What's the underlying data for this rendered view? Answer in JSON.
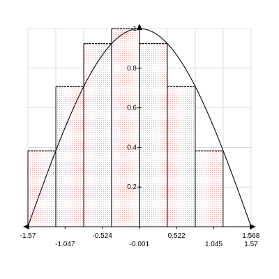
{
  "chart_data": {
    "type": "bar",
    "description_note": "",
    "title": "",
    "xlabel": "",
    "ylabel": "",
    "xlim": [
      -1.57,
      1.57
    ],
    "ylim": [
      0,
      1
    ],
    "grid": true,
    "rectangles": [
      {
        "x0": -1.57,
        "x1": -1.177,
        "height": 0.383
      },
      {
        "x0": -1.177,
        "x1": -0.785,
        "height": 0.707
      },
      {
        "x0": -0.785,
        "x1": -0.393,
        "height": 0.924
      },
      {
        "x0": -0.393,
        "x1": -0.001,
        "height": 1.0
      },
      {
        "x0": -0.001,
        "x1": 0.392,
        "height": 0.924
      },
      {
        "x0": 0.392,
        "x1": 0.784,
        "height": 0.707
      },
      {
        "x0": 0.784,
        "x1": 1.176,
        "height": 0.383
      }
    ],
    "curve": {
      "function": "cos(x)",
      "x_range": [
        -1.57,
        1.57
      ]
    },
    "x_tick_labels_upper": [
      {
        "x": -1.57,
        "label": "-1.57"
      },
      {
        "x": -0.524,
        "label": "-0.524"
      },
      {
        "x": 0.522,
        "label": "0.522"
      },
      {
        "x": 1.568,
        "label": "1.568"
      }
    ],
    "x_tick_labels_lower": [
      {
        "x": -1.047,
        "label": "-1.047"
      },
      {
        "x": -0.001,
        "label": "-0.001"
      },
      {
        "x": 1.045,
        "label": "1.045"
      },
      {
        "x": 1.57,
        "label": "1.57"
      }
    ],
    "y_ticks": [
      {
        "y": 0.2,
        "label": "0.2"
      },
      {
        "y": 0.4,
        "label": "0.4"
      },
      {
        "y": 0.6,
        "label": "0.6"
      },
      {
        "y": 0.8,
        "label": "0.8"
      },
      {
        "y": 1.0,
        "label": "1"
      }
    ],
    "colors": {
      "fill_dots": "#f08a8a",
      "outline": "#000000",
      "grid": "#c8c8c8",
      "curve": "#000000"
    }
  }
}
